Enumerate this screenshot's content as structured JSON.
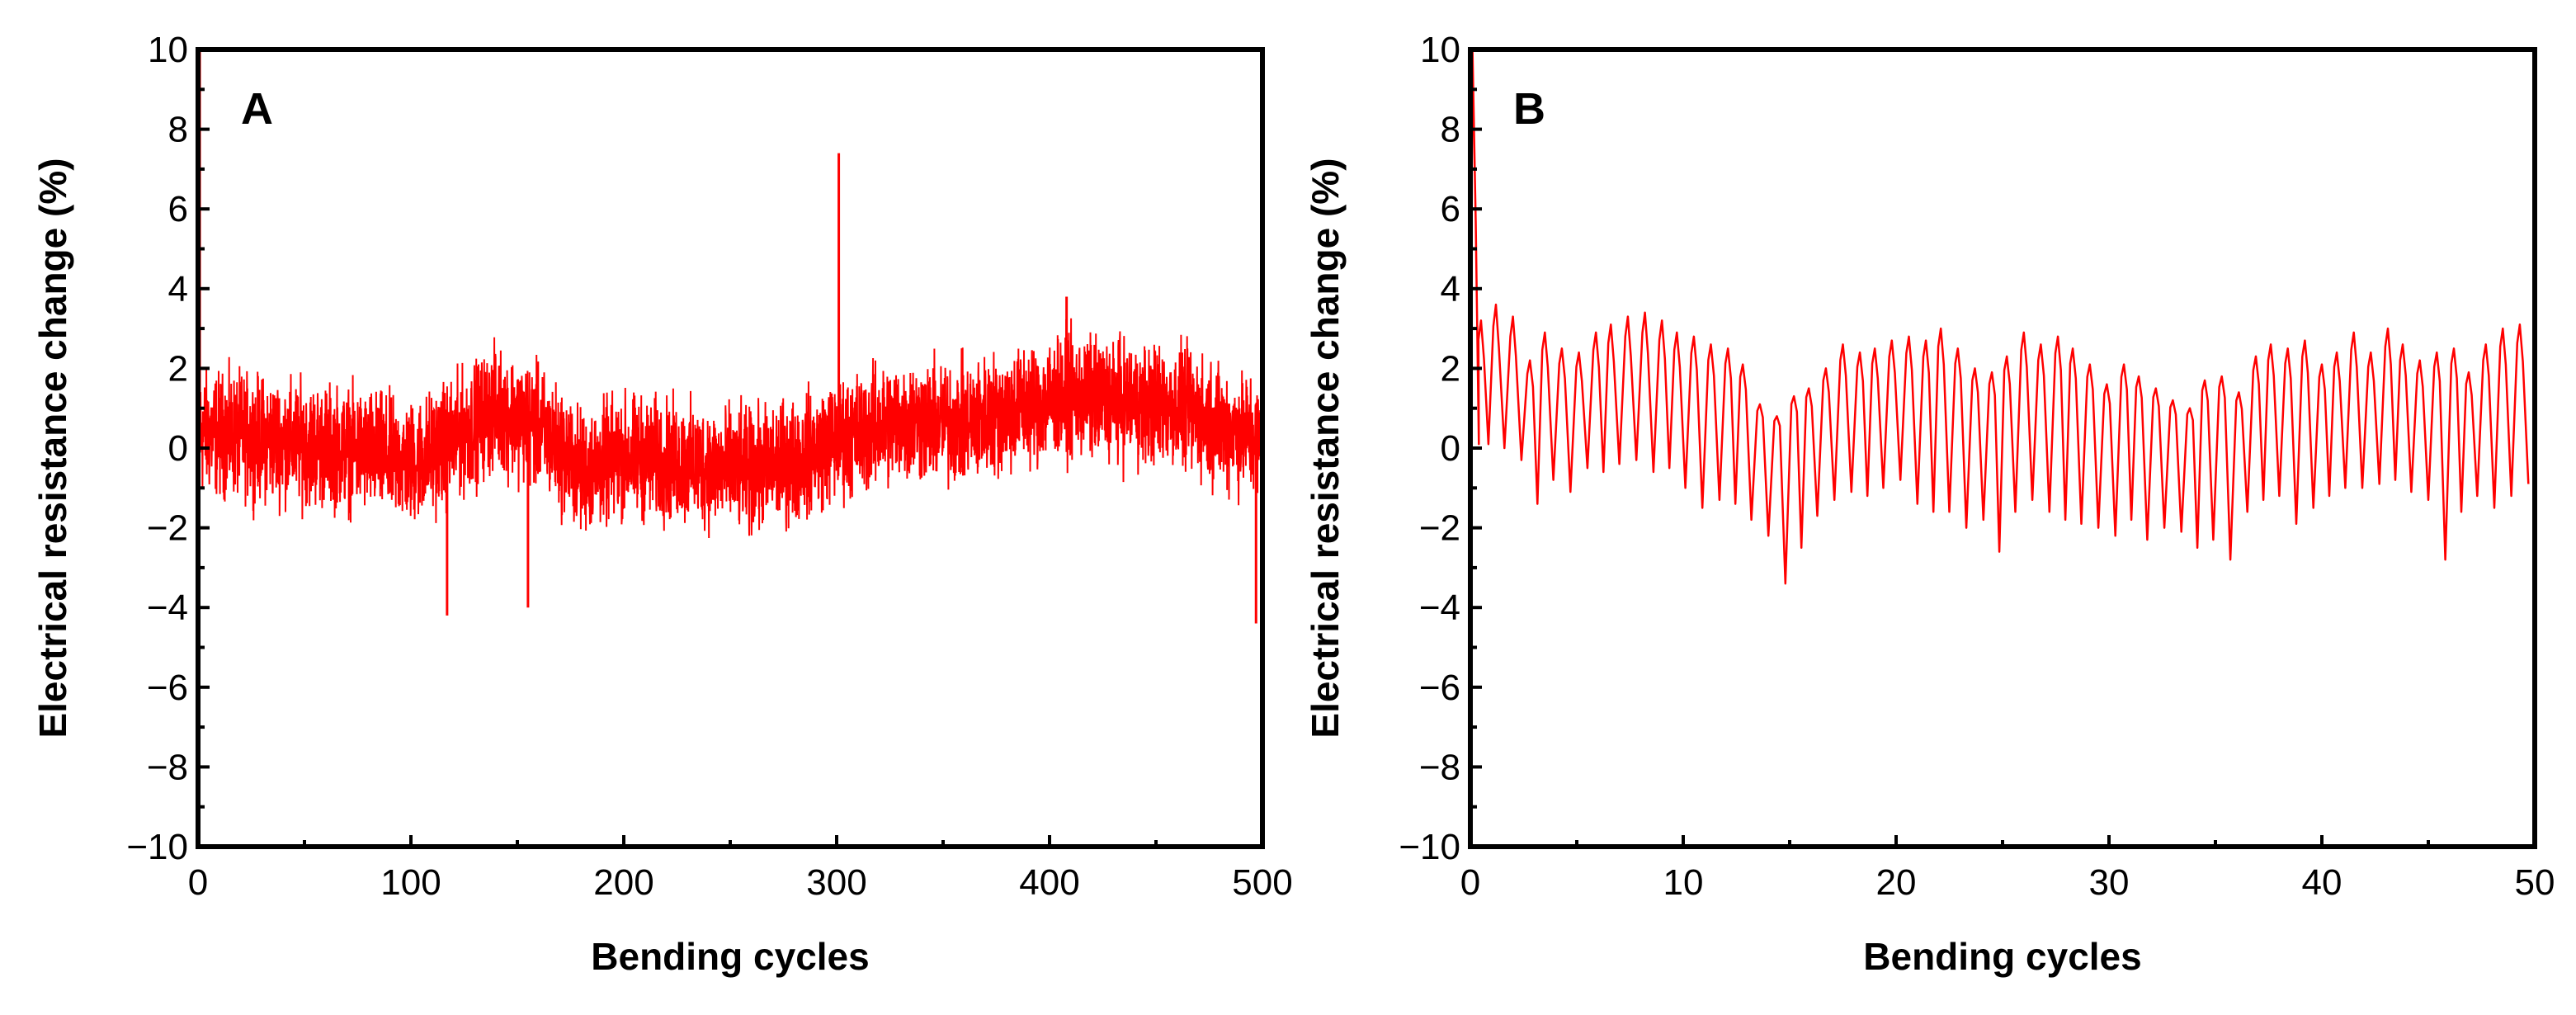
{
  "chart_data": [
    {
      "type": "line",
      "panel_label": "A",
      "xlabel": "Bending cycles",
      "ylabel": "Electrical resistance change (%)",
      "xlim": [
        0,
        500
      ],
      "ylim": [
        -10,
        10
      ],
      "x_ticks": [
        0,
        100,
        200,
        300,
        400,
        500
      ],
      "y_ticks": [
        -10,
        -8,
        -6,
        -4,
        -2,
        0,
        2,
        4,
        6,
        8,
        10
      ],
      "grid": false,
      "color": "#ff0000",
      "series": [
        {
          "trend_x": [
            0,
            20,
            50,
            80,
            100,
            120,
            140,
            160,
            180,
            200,
            230,
            260,
            280,
            300,
            330,
            360,
            390,
            410,
            430,
            460,
            480,
            500
          ],
          "trend_y": [
            0.4,
            0.3,
            0.1,
            -0.1,
            -0.4,
            0.2,
            1.0,
            0.5,
            -0.6,
            -0.2,
            -0.4,
            -0.6,
            -0.3,
            0.2,
            0.7,
            0.6,
            1.1,
            1.3,
            1.2,
            1.0,
            0.6,
            0.2
          ],
          "band_amplitude": 1.9,
          "spikes": [
            {
              "x": 0.8,
              "y": 10
            },
            {
              "x": 301,
              "y": 7.4
            },
            {
              "x": 117,
              "y": -4.2
            },
            {
              "x": 155,
              "y": -4.0
            },
            {
              "x": 497,
              "y": -4.4
            },
            {
              "x": 408,
              "y": 3.8
            }
          ]
        }
      ]
    },
    {
      "type": "line",
      "panel_label": "B",
      "xlabel": "Bending cycles",
      "ylabel": "Electrical resistance change (%)",
      "xlim": [
        0,
        50
      ],
      "ylim": [
        -10,
        10
      ],
      "x_ticks": [
        0,
        10,
        20,
        30,
        40,
        50
      ],
      "y_ticks": [
        -10,
        -8,
        -6,
        -4,
        -2,
        0,
        2,
        4,
        6,
        8,
        10
      ],
      "grid": false,
      "color": "#ff0000",
      "series": [
        {
          "initial_spike": {
            "x": 0.1,
            "y": 10
          },
          "cycle_x": [
            0.5,
            1.2,
            2.0,
            2.8,
            3.5,
            4.3,
            5.1,
            5.9,
            6.6,
            7.4,
            8.2,
            9.0,
            9.7,
            10.5,
            11.3,
            12.1,
            12.8,
            13.6,
            14.4,
            15.2,
            15.9,
            16.7,
            17.5,
            18.3,
            19.0,
            19.8,
            20.6,
            21.4,
            22.1,
            22.9,
            23.7,
            24.5,
            25.2,
            26.0,
            26.8,
            27.6,
            28.3,
            29.1,
            29.9,
            30.7,
            31.4,
            32.2,
            33.0,
            33.8,
            34.5,
            35.3,
            36.1,
            36.9,
            37.6,
            38.4,
            39.2,
            40.0,
            40.7,
            41.5,
            42.3,
            43.1,
            43.8,
            44.6,
            45.4,
            46.2,
            46.9,
            47.7,
            48.5,
            49.3
          ],
          "peaks": [
            3.2,
            3.6,
            3.3,
            2.2,
            2.9,
            2.5,
            2.4,
            2.9,
            3.1,
            3.3,
            3.4,
            3.2,
            2.9,
            2.8,
            2.6,
            2.5,
            2.1,
            1.1,
            0.8,
            1.3,
            1.5,
            2.0,
            2.6,
            2.4,
            2.5,
            2.7,
            2.8,
            2.7,
            3.0,
            2.5,
            2.0,
            1.9,
            2.3,
            2.9,
            2.6,
            2.8,
            2.5,
            2.1,
            1.6,
            2.1,
            1.8,
            1.5,
            1.2,
            1.0,
            1.7,
            1.8,
            1.4,
            2.3,
            2.6,
            2.5,
            2.7,
            2.1,
            2.4,
            2.9,
            2.4,
            3.0,
            2.6,
            2.2,
            2.4,
            2.5,
            1.9,
            2.6,
            3.0,
            3.1
          ],
          "troughs": [
            0.1,
            0.0,
            -0.3,
            -1.4,
            -0.8,
            -1.1,
            -0.5,
            -0.6,
            -0.4,
            -0.3,
            -0.6,
            -0.5,
            -1.0,
            -1.5,
            -1.3,
            -1.4,
            -1.8,
            -2.2,
            -3.4,
            -2.5,
            -1.7,
            -1.3,
            -1.1,
            -1.2,
            -1.0,
            -0.8,
            -1.4,
            -1.6,
            -1.6,
            -2.0,
            -1.8,
            -2.6,
            -1.6,
            -1.3,
            -1.6,
            -1.8,
            -1.9,
            -2.0,
            -2.2,
            -1.8,
            -2.3,
            -2.0,
            -2.1,
            -2.5,
            -2.3,
            -2.8,
            -1.6,
            -1.3,
            -1.2,
            -1.9,
            -1.5,
            -1.2,
            -1.0,
            -1.0,
            -0.9,
            -0.8,
            -1.1,
            -1.3,
            -2.8,
            -1.6,
            -1.2,
            -1.5,
            -1.2,
            -0.9
          ]
        }
      ]
    }
  ]
}
